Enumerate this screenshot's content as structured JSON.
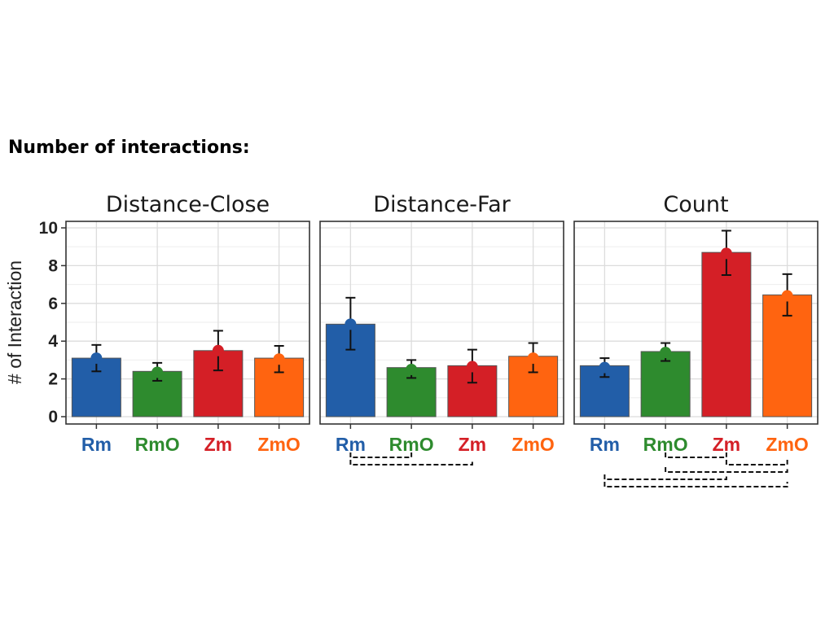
{
  "figure_title": "Number of interactions:",
  "colors": {
    "Rm": "#225ea8",
    "RmO": "#2e8b2e",
    "Zm": "#d41f26",
    "ZmO": "#ff6410"
  },
  "chart_data": [
    {
      "type": "bar",
      "title": "Distance-Close",
      "ylabel": "# of Interaction",
      "ylim": [
        0,
        10
      ],
      "yticks": [
        0,
        2,
        4,
        6,
        8,
        10
      ],
      "categories": [
        "Rm",
        "RmO",
        "Zm",
        "ZmO"
      ],
      "values": [
        3.1,
        2.4,
        3.5,
        3.1
      ],
      "points": [
        3.1,
        2.35,
        3.5,
        3.05
      ],
      "error_low": [
        2.4,
        1.9,
        2.45,
        2.35
      ],
      "error_high": [
        3.8,
        2.85,
        4.55,
        3.75
      ],
      "comparisons": []
    },
    {
      "type": "bar",
      "title": "Distance-Far",
      "ylabel": "# of Interaction",
      "ylim": [
        0,
        10
      ],
      "yticks": [
        0,
        2,
        4,
        6,
        8,
        10
      ],
      "categories": [
        "Rm",
        "RmO",
        "Zm",
        "ZmO"
      ],
      "values": [
        4.9,
        2.6,
        2.7,
        3.2
      ],
      "points": [
        4.9,
        2.5,
        2.65,
        3.1
      ],
      "error_low": [
        3.55,
        2.05,
        1.8,
        2.35
      ],
      "error_high": [
        6.3,
        3.0,
        3.55,
        3.9
      ],
      "comparisons": [
        [
          "Rm",
          "RmO"
        ],
        [
          "Rm",
          "Zm"
        ]
      ]
    },
    {
      "type": "bar",
      "title": "Count",
      "ylabel": "# of Interaction",
      "ylim": [
        0,
        10
      ],
      "yticks": [
        0,
        2,
        4,
        6,
        8,
        10
      ],
      "categories": [
        "Rm",
        "RmO",
        "Zm",
        "ZmO"
      ],
      "values": [
        2.7,
        3.45,
        8.7,
        6.45
      ],
      "points": [
        2.6,
        3.4,
        8.65,
        6.4
      ],
      "error_low": [
        2.1,
        2.95,
        7.5,
        5.35
      ],
      "error_high": [
        3.1,
        3.9,
        9.85,
        7.55
      ],
      "comparisons": [
        [
          "RmO",
          "Zm"
        ],
        [
          "Zm",
          "ZmO"
        ],
        [
          "RmO",
          "ZmO"
        ],
        [
          "Rm",
          "Zm"
        ],
        [
          "Rm",
          "ZmO"
        ]
      ]
    }
  ]
}
